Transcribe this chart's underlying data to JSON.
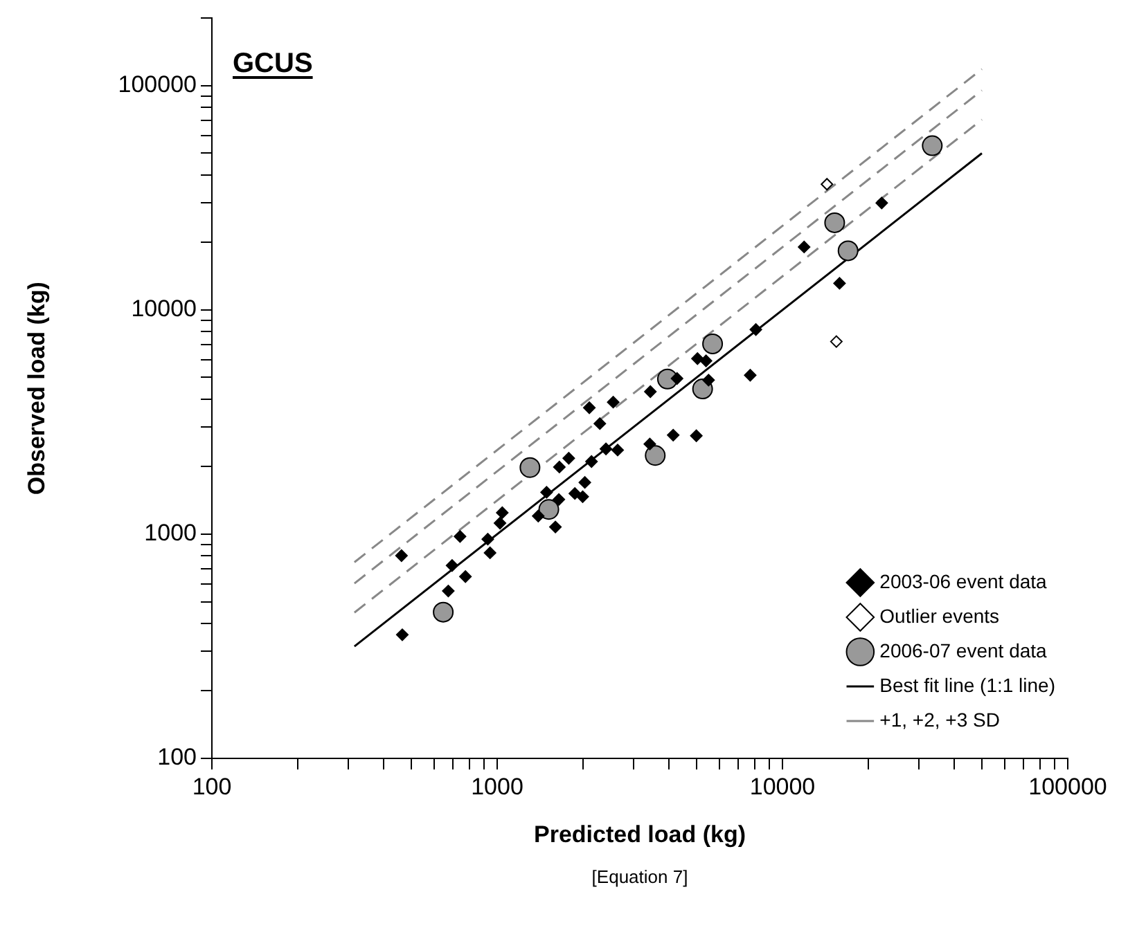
{
  "chart_data": {
    "type": "scatter",
    "title": "GCUS",
    "xlabel": "Predicted load (kg)",
    "ylabel": "Observed load (kg)",
    "annotations": [
      "[Equation 7]"
    ],
    "log": "xy",
    "grid": false,
    "legend": "bottom right",
    "xlim": [
      100,
      100000
    ],
    "ylim": [
      100,
      200000
    ],
    "xticks": [
      100,
      {
        "value": 200,
        "label": null
      },
      {
        "value": 300,
        "label": null
      },
      {
        "value": 400,
        "label": null
      },
      {
        "value": 500,
        "label": null
      },
      {
        "value": 600,
        "label": null
      },
      {
        "value": 700,
        "label": null
      },
      {
        "value": 800,
        "label": null
      },
      {
        "value": 900,
        "label": null
      },
      1000,
      {
        "value": 2000,
        "label": null
      },
      {
        "value": 3000,
        "label": null
      },
      {
        "value": 4000,
        "label": null
      },
      {
        "value": 5000,
        "label": null
      },
      {
        "value": 6000,
        "label": null
      },
      {
        "value": 7000,
        "label": null
      },
      {
        "value": 8000,
        "label": null
      },
      {
        "value": 9000,
        "label": null
      },
      10000,
      {
        "value": 20000,
        "label": null
      },
      {
        "value": 30000,
        "label": null
      },
      {
        "value": 40000,
        "label": null
      },
      {
        "value": 50000,
        "label": null
      },
      {
        "value": 60000,
        "label": null
      },
      {
        "value": 70000,
        "label": null
      },
      {
        "value": 80000,
        "label": null
      },
      {
        "value": 90000,
        "label": null
      },
      100000
    ],
    "yticks": [
      100,
      {
        "value": 200,
        "label": null
      },
      {
        "value": 300,
        "label": null
      },
      {
        "value": 400,
        "label": null
      },
      {
        "value": 500,
        "label": null
      },
      {
        "value": 600,
        "label": null
      },
      {
        "value": 700,
        "label": null
      },
      {
        "value": 800,
        "label": null
      },
      {
        "value": 900,
        "label": null
      },
      1000,
      {
        "value": 2000,
        "label": null
      },
      {
        "value": 3000,
        "label": null
      },
      {
        "value": 4000,
        "label": null
      },
      {
        "value": 5000,
        "label": null
      },
      {
        "value": 6000,
        "label": null
      },
      {
        "value": 7000,
        "label": null
      },
      {
        "value": 8000,
        "label": null
      },
      {
        "value": 9000,
        "label": null
      },
      10000,
      {
        "value": 20000,
        "label": null
      },
      {
        "value": 30000,
        "label": null
      },
      {
        "value": 40000,
        "label": null
      },
      {
        "value": 50000,
        "label": null
      },
      {
        "value": 60000,
        "label": null
      },
      {
        "value": 70000,
        "label": null
      },
      {
        "value": 80000,
        "label": null
      },
      {
        "value": 90000,
        "label": null
      },
      100000,
      {
        "value": 200000,
        "label": null
      }
    ],
    "series": [
      {
        "name": "Best fit line (1:1 line)",
        "type": "line",
        "line_style": "solid",
        "marker": "none",
        "color": "#000000",
        "x": [
          316,
          50000
        ],
        "values": [
          316,
          50000
        ]
      },
      {
        "name": "+1, +2, +3 SD",
        "type": "line",
        "line_style": "dashed",
        "marker": "none",
        "color": "#888888",
        "x": [
          316,
          50000
        ],
        "values": [
          447,
          70600
        ]
      },
      {
        "type": "line",
        "line_style": "dashed",
        "marker": "none",
        "color": "#888888",
        "x": [
          316,
          50000
        ],
        "values": [
          603,
          95300
        ]
      },
      {
        "type": "line",
        "line_style": "dashed",
        "marker": "none",
        "color": "#888888",
        "x": [
          316,
          50000
        ],
        "values": [
          750,
          118600
        ]
      },
      {
        "name": "2003-06 event data",
        "type": "scatter",
        "marker": "diamond",
        "color": "#000000",
        "x": [
          462,
          465,
          695,
          674,
          774,
          741,
          927,
          944,
          1042,
          1023,
          1393,
          1490,
          1600,
          1645,
          1652,
          1782,
          1872,
          1994,
          2029,
          2141,
          2104,
          2290,
          2406,
          2551,
          2644,
          3443,
          3428,
          4140,
          4270,
          4990,
          5036,
          5395,
          5508,
          7709,
          8068,
          11910,
          15850,
          22280
        ],
        "values": [
          802,
          356,
          725,
          558,
          647,
          977,
          950,
          826,
          1247,
          1120,
          1205,
          1538,
          1077,
          1428,
          1993,
          2181,
          1519,
          1469,
          1702,
          2109,
          3664,
          3113,
          2400,
          3881,
          2373,
          4321,
          2525,
          2766,
          4947,
          2748,
          6067,
          5929,
          4866,
          5117,
          8180,
          19100,
          13150,
          30000
        ]
      },
      {
        "name": "Outlier events",
        "type": "scatter",
        "marker": "diamond",
        "color": "#ffffff",
        "x": [
          14320,
          15450
        ],
        "values": [
          36370,
          7230
        ]
      },
      {
        "name": "2006-07 event data",
        "type": "scatter",
        "marker": "circle",
        "color": "#999999",
        "x": [
          647,
          1303,
          1517,
          3581,
          3953,
          5248,
          5689,
          15240,
          16980,
          33500
        ],
        "values": [
          449,
          1982,
          1289,
          2244,
          4920,
          4446,
          7063,
          24490,
          18370,
          54050
        ]
      }
    ]
  }
}
